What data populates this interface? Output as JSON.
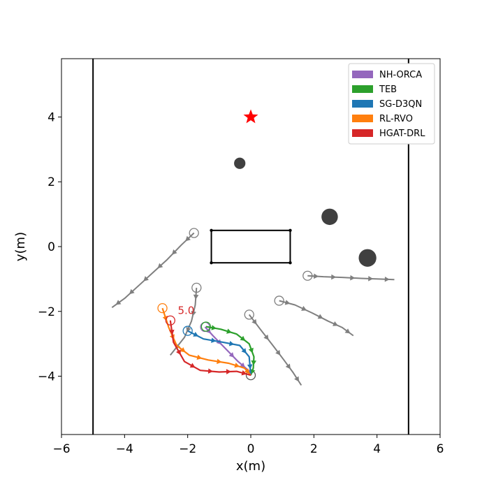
{
  "chart_data": {
    "type": "scatter",
    "xlabel": "x(m)",
    "ylabel": "y(m)",
    "xlim": [
      -6,
      6
    ],
    "ylim": [
      -5.8,
      5.8
    ],
    "xticks": [
      -6,
      -4,
      -2,
      0,
      2,
      4,
      6
    ],
    "yticks": [
      -4,
      -2,
      0,
      2,
      4
    ],
    "xtick_labels": [
      "−6",
      "−4",
      "−2",
      "0",
      "2",
      "4",
      "6"
    ],
    "ytick_labels": [
      "−4",
      "−2",
      "0",
      "2",
      "4"
    ],
    "grid": false,
    "legend_position": "top-right",
    "walls_x": [
      -5,
      5
    ],
    "goal": {
      "x": 0,
      "y": 4,
      "color": "#ff0000"
    },
    "rectangle_obstacle": {
      "x0": -1.25,
      "x1": 1.25,
      "y0": -0.5,
      "y1": 0.5
    },
    "static_obstacles": [
      {
        "x": -0.35,
        "y": 2.57,
        "r": 0.18
      },
      {
        "x": 2.5,
        "y": 0.92,
        "r": 0.26
      },
      {
        "x": 3.7,
        "y": -0.35,
        "r": 0.28
      }
    ],
    "pedestrians": [
      {
        "points": [
          [
            -1.8,
            0.42
          ],
          [
            -2.2,
            0.05
          ],
          [
            -2.65,
            -0.4
          ],
          [
            -3.1,
            -0.8
          ],
          [
            -3.55,
            -1.2
          ],
          [
            -4.0,
            -1.6
          ],
          [
            -4.4,
            -1.88
          ]
        ]
      },
      {
        "points": [
          [
            -1.72,
            -1.27
          ],
          [
            -1.76,
            -1.8
          ],
          [
            -1.88,
            -2.3
          ],
          [
            -2.1,
            -2.8
          ],
          [
            -2.55,
            -3.35
          ]
        ]
      },
      {
        "points": [
          [
            1.8,
            -0.9
          ],
          [
            2.3,
            -0.93
          ],
          [
            2.9,
            -0.95
          ],
          [
            3.5,
            -0.98
          ],
          [
            4.05,
            -1.0
          ],
          [
            4.55,
            -1.02
          ]
        ]
      },
      {
        "points": [
          [
            0.9,
            -1.67
          ],
          [
            1.4,
            -1.8
          ],
          [
            1.95,
            -2.05
          ],
          [
            2.45,
            -2.3
          ],
          [
            2.9,
            -2.5
          ],
          [
            3.25,
            -2.75
          ]
        ]
      },
      {
        "points": [
          [
            -0.05,
            -2.1
          ],
          [
            0.3,
            -2.55
          ],
          [
            0.7,
            -3.05
          ],
          [
            1.05,
            -3.5
          ],
          [
            1.35,
            -3.9
          ],
          [
            1.6,
            -4.28
          ]
        ]
      }
    ],
    "series": [
      {
        "name": "NH-ORCA",
        "color": "#9467bd",
        "points": [
          [
            -1.45,
            -2.48
          ],
          [
            -1.2,
            -2.75
          ],
          [
            -0.8,
            -3.15
          ],
          [
            -0.4,
            -3.55
          ],
          [
            -0.1,
            -3.8
          ],
          [
            0.0,
            -3.97
          ]
        ]
      },
      {
        "name": "TEB",
        "color": "#2ca02c",
        "points": [
          [
            -1.42,
            -2.47
          ],
          [
            -0.95,
            -2.55
          ],
          [
            -0.45,
            -2.7
          ],
          [
            -0.05,
            -3.0
          ],
          [
            0.1,
            -3.4
          ],
          [
            0.08,
            -3.75
          ],
          [
            0.0,
            -3.97
          ]
        ]
      },
      {
        "name": "SG-D3QN",
        "color": "#1f77b4",
        "points": [
          [
            -2.0,
            -2.6
          ],
          [
            -1.5,
            -2.85
          ],
          [
            -0.9,
            -2.95
          ],
          [
            -0.35,
            -3.05
          ],
          [
            -0.05,
            -3.4
          ],
          [
            0.0,
            -3.97
          ]
        ]
      },
      {
        "name": "RL-RVO",
        "color": "#ff7f0e",
        "points": [
          [
            -2.8,
            -1.9
          ],
          [
            -2.6,
            -2.5
          ],
          [
            -2.35,
            -3.05
          ],
          [
            -1.95,
            -3.35
          ],
          [
            -1.35,
            -3.5
          ],
          [
            -0.7,
            -3.6
          ],
          [
            -0.2,
            -3.75
          ],
          [
            0.0,
            -3.97
          ]
        ]
      },
      {
        "name": " HGAT-DRL",
        "color": "#d62728",
        "points": [
          [
            -2.55,
            -2.28
          ],
          [
            -2.45,
            -2.95
          ],
          [
            -2.1,
            -3.55
          ],
          [
            -1.6,
            -3.82
          ],
          [
            -1.0,
            -3.87
          ],
          [
            -0.45,
            -3.85
          ],
          [
            0.0,
            -3.97
          ]
        ]
      }
    ],
    "annotations": [
      {
        "text": "5.0",
        "x": -2.05,
        "y": -1.95,
        "color": "#d62728"
      }
    ]
  }
}
